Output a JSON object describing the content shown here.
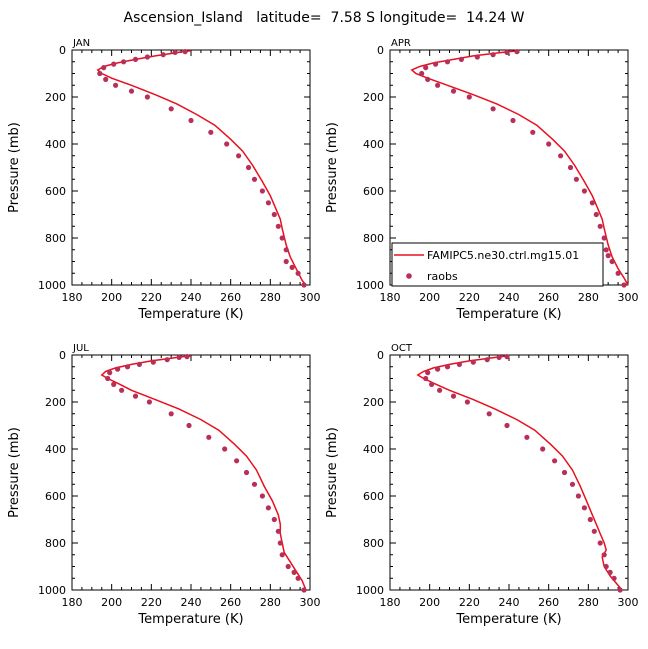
{
  "title": "Ascension_Island   latitude=  7.58 S longitude=  14.24 W",
  "colors": {
    "model": "#e8101e",
    "obs": "#b8305a"
  },
  "legend": {
    "model": "FAMIPC5.ne30.ctrl.mg15.01",
    "obs": "raobs"
  },
  "chart_data": [
    {
      "type": "line",
      "panel": "JAN",
      "title": "JAN",
      "xlabel": "Temperature (K)",
      "ylabel": "Pressure (mb)",
      "xlim": [
        180,
        300
      ],
      "ylim": [
        1000,
        0
      ],
      "xticks": [
        180,
        200,
        220,
        240,
        260,
        280,
        300
      ],
      "yticks": [
        0,
        200,
        400,
        600,
        800,
        1000
      ],
      "series": [
        {
          "name": "FAMIPC5.ne30.ctrl.mg15.01",
          "kind": "line",
          "points": [
            [
              240,
              3
            ],
            [
              236,
              7
            ],
            [
              230,
              15
            ],
            [
              222,
              25
            ],
            [
              212,
              40
            ],
            [
              203,
              55
            ],
            [
              196,
              70
            ],
            [
              193,
              85
            ],
            [
              195,
              100
            ],
            [
              200,
              120
            ],
            [
              210,
              150
            ],
            [
              222,
              190
            ],
            [
              233,
              230
            ],
            [
              243,
              275
            ],
            [
              252,
              320
            ],
            [
              260,
              380
            ],
            [
              266,
              430
            ],
            [
              271,
              490
            ],
            [
              276,
              560
            ],
            [
              280,
              620
            ],
            [
              283,
              680
            ],
            [
              285,
              720
            ],
            [
              286,
              760
            ],
            [
              288,
              830
            ],
            [
              290,
              880
            ],
            [
              293,
              930
            ],
            [
              296,
              980
            ],
            [
              298,
              1000
            ]
          ]
        },
        {
          "name": "raobs",
          "kind": "scatter",
          "points": [
            [
              237,
              7
            ],
            [
              232,
              10
            ],
            [
              226,
              20
            ],
            [
              218,
              30
            ],
            [
              212,
              40
            ],
            [
              206,
              50
            ],
            [
              201,
              60
            ],
            [
              196,
              75
            ],
            [
              194,
              100
            ],
            [
              197,
              125
            ],
            [
              202,
              150
            ],
            [
              210,
              175
            ],
            [
              218,
              200
            ],
            [
              230,
              250
            ],
            [
              240,
              300
            ],
            [
              250,
              350
            ],
            [
              258,
              400
            ],
            [
              264,
              450
            ],
            [
              269,
              500
            ],
            [
              272,
              550
            ],
            [
              276,
              600
            ],
            [
              279,
              650
            ],
            [
              282,
              700
            ],
            [
              284,
              750
            ],
            [
              286,
              800
            ],
            [
              288,
              850
            ],
            [
              288,
              900
            ],
            [
              291,
              925
            ],
            [
              294,
              950
            ],
            [
              297,
              1000
            ]
          ]
        }
      ]
    },
    {
      "type": "line",
      "panel": "APR",
      "title": "APR",
      "xlabel": "Temperature (K)",
      "ylabel": "Pressure (mb)",
      "xlim": [
        180,
        300
      ],
      "ylim": [
        1000,
        0
      ],
      "xticks": [
        180,
        200,
        220,
        240,
        260,
        280,
        300
      ],
      "yticks": [
        0,
        200,
        400,
        600,
        800,
        1000
      ],
      "series": [
        {
          "name": "FAMIPC5.ne30.ctrl.mg15.01",
          "kind": "line",
          "points": [
            [
              245,
              3
            ],
            [
              240,
              7
            ],
            [
              232,
              15
            ],
            [
              222,
              25
            ],
            [
              212,
              40
            ],
            [
              202,
              55
            ],
            [
              195,
              70
            ],
            [
              191,
              85
            ],
            [
              193,
              100
            ],
            [
              199,
              120
            ],
            [
              209,
              150
            ],
            [
              222,
              190
            ],
            [
              234,
              230
            ],
            [
              245,
              275
            ],
            [
              254,
              320
            ],
            [
              262,
              380
            ],
            [
              268,
              430
            ],
            [
              273,
              490
            ],
            [
              278,
              560
            ],
            [
              282,
              620
            ],
            [
              285,
              680
            ],
            [
              287,
              720
            ],
            [
              288,
              760
            ],
            [
              290,
              830
            ],
            [
              292,
              880
            ],
            [
              295,
              930
            ],
            [
              298,
              970
            ],
            [
              300,
              1000
            ]
          ]
        },
        {
          "name": "raobs",
          "kind": "scatter",
          "points": [
            [
              244,
              7
            ],
            [
              239,
              10
            ],
            [
              232,
              20
            ],
            [
              224,
              30
            ],
            [
              216,
              40
            ],
            [
              209,
              50
            ],
            [
              203,
              60
            ],
            [
              198,
              75
            ],
            [
              196,
              100
            ],
            [
              199,
              125
            ],
            [
              204,
              150
            ],
            [
              212,
              175
            ],
            [
              220,
              200
            ],
            [
              232,
              250
            ],
            [
              242,
              300
            ],
            [
              252,
              350
            ],
            [
              260,
              400
            ],
            [
              266,
              450
            ],
            [
              271,
              500
            ],
            [
              274,
              550
            ],
            [
              278,
              600
            ],
            [
              282,
              650
            ],
            [
              284,
              700
            ],
            [
              286,
              750
            ],
            [
              288,
              800
            ],
            [
              289,
              850
            ],
            [
              290,
              875
            ],
            [
              292,
              900
            ],
            [
              295,
              950
            ],
            [
              298,
              1000
            ]
          ]
        }
      ]
    },
    {
      "type": "line",
      "panel": "JUL",
      "title": "JUL",
      "xlabel": "Temperature (K)",
      "ylabel": "Pressure (mb)",
      "xlim": [
        180,
        300
      ],
      "ylim": [
        1000,
        0
      ],
      "xticks": [
        180,
        200,
        220,
        240,
        260,
        280,
        300
      ],
      "yticks": [
        0,
        200,
        400,
        600,
        800,
        1000
      ],
      "series": [
        {
          "name": "FAMIPC5.ne30.ctrl.mg15.01",
          "kind": "line",
          "points": [
            [
              240,
              3
            ],
            [
              236,
              7
            ],
            [
              229,
              15
            ],
            [
              220,
              25
            ],
            [
              210,
              40
            ],
            [
              202,
              55
            ],
            [
              197,
              70
            ],
            [
              195,
              85
            ],
            [
              198,
              100
            ],
            [
              203,
              120
            ],
            [
              210,
              150
            ],
            [
              222,
              190
            ],
            [
              234,
              230
            ],
            [
              245,
              275
            ],
            [
              254,
              320
            ],
            [
              262,
              380
            ],
            [
              268,
              430
            ],
            [
              273,
              490
            ],
            [
              277,
              560
            ],
            [
              281,
              620
            ],
            [
              284,
              680
            ],
            [
              285,
              720
            ],
            [
              285,
              760
            ],
            [
              286,
              800
            ],
            [
              287,
              840
            ],
            [
              290,
              880
            ],
            [
              293,
              920
            ],
            [
              296,
              960
            ],
            [
              298,
              1000
            ]
          ]
        },
        {
          "name": "raobs",
          "kind": "scatter",
          "points": [
            [
              238,
              7
            ],
            [
              234,
              10
            ],
            [
              228,
              20
            ],
            [
              221,
              30
            ],
            [
              214,
              40
            ],
            [
              208,
              50
            ],
            [
              203,
              60
            ],
            [
              199,
              75
            ],
            [
              198,
              100
            ],
            [
              201,
              125
            ],
            [
              205,
              150
            ],
            [
              212,
              175
            ],
            [
              219,
              200
            ],
            [
              230,
              250
            ],
            [
              239,
              300
            ],
            [
              249,
              350
            ],
            [
              257,
              400
            ],
            [
              263,
              450
            ],
            [
              268,
              500
            ],
            [
              272,
              550
            ],
            [
              276,
              600
            ],
            [
              279,
              650
            ],
            [
              282,
              700
            ],
            [
              284,
              750
            ],
            [
              285,
              800
            ],
            [
              286,
              850
            ],
            [
              289,
              900
            ],
            [
              292,
              925
            ],
            [
              294,
              950
            ],
            [
              297,
              1000
            ]
          ]
        }
      ]
    },
    {
      "type": "line",
      "panel": "OCT",
      "title": "OCT",
      "xlabel": "Temperature (K)",
      "ylabel": "Pressure (mb)",
      "xlim": [
        180,
        300
      ],
      "ylim": [
        1000,
        0
      ],
      "xticks": [
        180,
        200,
        220,
        240,
        260,
        280,
        300
      ],
      "yticks": [
        0,
        200,
        400,
        600,
        800,
        1000
      ],
      "series": [
        {
          "name": "FAMIPC5.ne30.ctrl.mg15.01",
          "kind": "line",
          "points": [
            [
              240,
              3
            ],
            [
              236,
              7
            ],
            [
              229,
              15
            ],
            [
              220,
              25
            ],
            [
              210,
              40
            ],
            [
              202,
              55
            ],
            [
              197,
              70
            ],
            [
              194,
              85
            ],
            [
              197,
              100
            ],
            [
              202,
              120
            ],
            [
              210,
              150
            ],
            [
              222,
              190
            ],
            [
              233,
              230
            ],
            [
              244,
              275
            ],
            [
              253,
              320
            ],
            [
              261,
              380
            ],
            [
              267,
              430
            ],
            [
              272,
              490
            ],
            [
              276,
              560
            ],
            [
              279,
              620
            ],
            [
              282,
              680
            ],
            [
              284,
              720
            ],
            [
              286,
              760
            ],
            [
              288,
              800
            ],
            [
              289,
              830
            ],
            [
              287,
              860
            ],
            [
              288,
              900
            ],
            [
              291,
              940
            ],
            [
              294,
              970
            ],
            [
              297,
              1000
            ]
          ]
        },
        {
          "name": "raobs",
          "kind": "scatter",
          "points": [
            [
              239,
              7
            ],
            [
              235,
              10
            ],
            [
              229,
              20
            ],
            [
              222,
              30
            ],
            [
              215,
              40
            ],
            [
              209,
              50
            ],
            [
              204,
              60
            ],
            [
              199,
              75
            ],
            [
              198,
              100
            ],
            [
              201,
              125
            ],
            [
              205,
              150
            ],
            [
              212,
              175
            ],
            [
              219,
              200
            ],
            [
              230,
              250
            ],
            [
              239,
              300
            ],
            [
              249,
              350
            ],
            [
              257,
              400
            ],
            [
              263,
              450
            ],
            [
              268,
              500
            ],
            [
              272,
              550
            ],
            [
              275,
              600
            ],
            [
              278,
              650
            ],
            [
              281,
              700
            ],
            [
              283,
              750
            ],
            [
              286,
              800
            ],
            [
              288,
              850
            ],
            [
              289,
              900
            ],
            [
              291,
              925
            ],
            [
              293,
              950
            ],
            [
              296,
              1000
            ]
          ]
        }
      ]
    }
  ]
}
